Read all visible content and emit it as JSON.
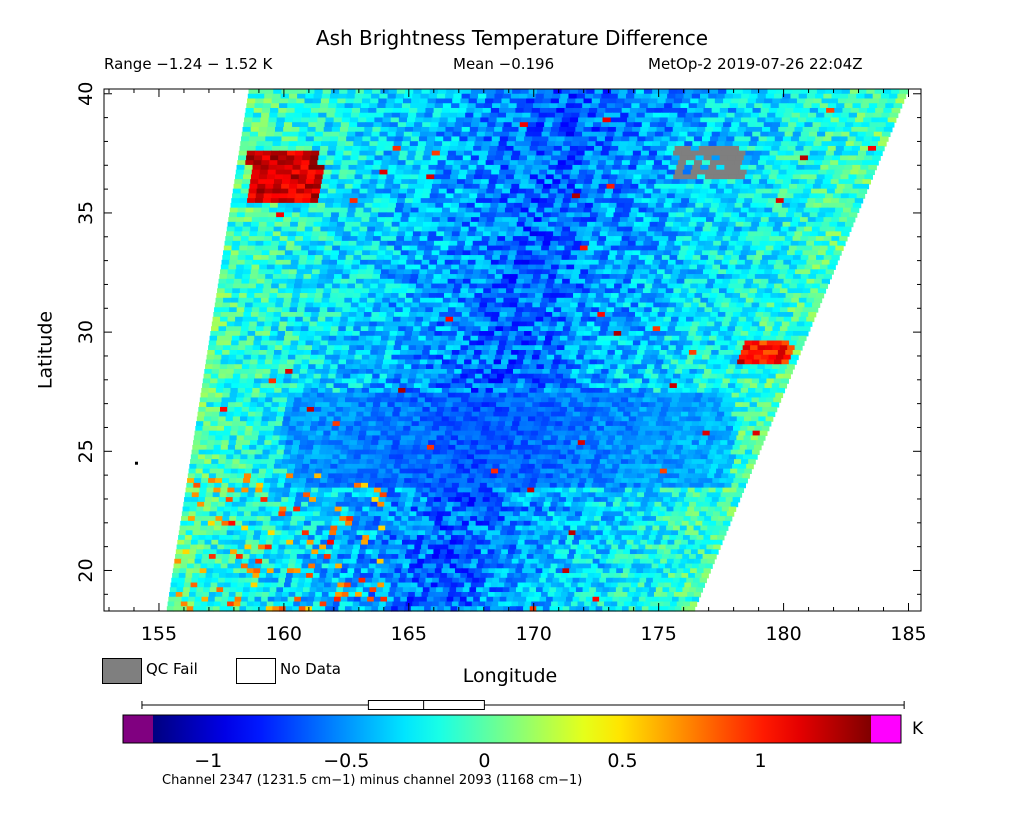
{
  "chart_data": {
    "type": "heatmap",
    "title": "Ash Brightness Temperature Difference",
    "range_text": "Range −1.24 − 1.52 K",
    "mean_text": "Mean −0.196",
    "satellite_time": "MetOp-2 2019-07-26 22:04Z",
    "xlabel": "Longitude",
    "ylabel": "Latitude",
    "xlim": [
      152.8,
      185.5
    ],
    "ylim": [
      18.3,
      40.2
    ],
    "xticks": [
      155,
      160,
      165,
      170,
      175,
      180,
      185
    ],
    "yticks": [
      20,
      25,
      30,
      35,
      40
    ],
    "color_range": [
      -1.2,
      1.4
    ],
    "colorbar_ticks": [
      -1,
      -0.5,
      0,
      0.5,
      1
    ],
    "colorbar_tick_labels": [
      "−1",
      "−0.5",
      "0",
      "0.5",
      "1"
    ],
    "colorbar_unit": "K",
    "colors": {
      "under": "#800080",
      "over": "#ff00ff",
      "qc_fail": "#7f7f7f",
      "no_data": "#ffffff"
    },
    "boxplot": {
      "min": -1.24,
      "q1": -0.42,
      "median": -0.22,
      "q3": -0.0,
      "max": 1.52
    },
    "swath_corners": {
      "top_left": [
        158.6,
        40.2
      ],
      "top_right": [
        185.0,
        40.2
      ],
      "bottom_right": [
        176.4,
        18.3
      ],
      "bottom_left": [
        155.3,
        18.3
      ]
    },
    "features": [
      {
        "kind": "warm_patch",
        "lon_range": [
          158.6,
          161.5
        ],
        "lat_range": [
          35.5,
          37.6
        ],
        "value": 1.2
      },
      {
        "kind": "qc_fail",
        "lon_range": [
          175.7,
          178.4
        ],
        "lat_range": [
          36.5,
          37.8
        ]
      },
      {
        "kind": "warm_streak",
        "lon_range": [
          178.3,
          180.3
        ],
        "lat_range": [
          28.7,
          29.6
        ],
        "value": 1.0
      },
      {
        "kind": "cold_band",
        "lon_range": [
          160,
          178
        ],
        "lat_range": [
          23.5,
          27.5
        ],
        "value": -0.7
      },
      {
        "kind": "warm_speckle",
        "lon_range": [
          155.5,
          164
        ],
        "lat_range": [
          18.3,
          24
        ],
        "value": 0.5
      }
    ],
    "mean": -0.196,
    "min": -1.24,
    "max": 1.52
  },
  "legend": {
    "qc_fail_label": "QC Fail",
    "no_data_label": "No Data"
  },
  "footnote": "Channel 2347 (1231.5 cm−1) minus channel 2093 (1168 cm−1)"
}
